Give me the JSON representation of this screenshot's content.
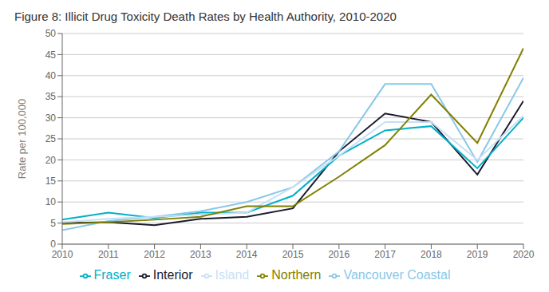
{
  "chart_data": {
    "type": "line",
    "title": "Figure 8: Illicit Drug Toxicity Death Rates by Health Authority, 2010-2020",
    "ylabel": "Rate per 100,000",
    "x": [
      2010,
      2011,
      2012,
      2013,
      2014,
      2015,
      2016,
      2017,
      2018,
      2019,
      2020
    ],
    "series": [
      {
        "name": "Interior",
        "color": "#1a1a2e",
        "values": [
          5.0,
          5.2,
          4.5,
          6.0,
          6.5,
          8.5,
          22.0,
          31.0,
          29.0,
          16.5,
          34.0
        ]
      },
      {
        "name": "Fraser",
        "color": "#00b0c8",
        "values": [
          5.8,
          7.5,
          6.2,
          7.5,
          7.5,
          11.5,
          21.0,
          27.0,
          28.0,
          18.0,
          30.0
        ]
      },
      {
        "name": "Vancouver Coastal",
        "color": "#88c8e8",
        "values": [
          3.3,
          5.5,
          6.5,
          7.8,
          10.0,
          13.5,
          22.0,
          38.0,
          38.0,
          19.5,
          39.5
        ]
      },
      {
        "name": "Island",
        "color": "#c8dff5",
        "values": [
          5.2,
          6.0,
          6.5,
          7.0,
          7.5,
          13.5,
          21.0,
          29.0,
          29.0,
          20.0,
          30.5
        ]
      },
      {
        "name": "Northern",
        "color": "#808000",
        "values": [
          4.8,
          5.2,
          5.8,
          6.5,
          9.0,
          9.0,
          16.0,
          23.5,
          35.5,
          24.0,
          46.5
        ]
      }
    ],
    "xlim": [
      2010,
      2020
    ],
    "xticks": [
      2010,
      2011,
      2012,
      2013,
      2014,
      2015,
      2016,
      2017,
      2018,
      2019,
      2020
    ],
    "ylim": [
      0,
      50
    ],
    "yticks": [
      0,
      5,
      10,
      15,
      20,
      25,
      30,
      35,
      40,
      45,
      50
    ],
    "grid": true,
    "legend": "bottom"
  }
}
